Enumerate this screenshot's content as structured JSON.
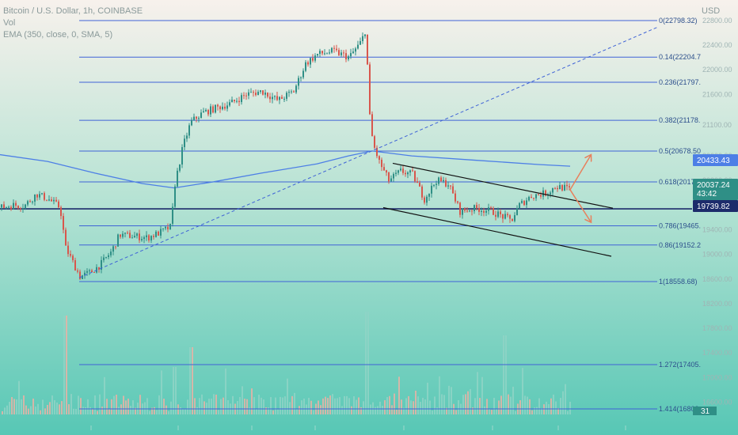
{
  "header": {
    "title": "Bitcoin / U.S. Dollar, 1h, COINBASE",
    "vol_label": "Vol",
    "ema_label": "EMA (350, close, 0, SMA, 5)"
  },
  "axis": {
    "currency": "USD"
  },
  "price_tags": {
    "ema": "20433.43",
    "last": "20037.24",
    "countdown": "43:42",
    "line": "19739.82",
    "volume_badge": "31"
  },
  "colors": {
    "bg_top": "#f7f1ec",
    "bg_bottom": "#57c7b5",
    "fib": "#3f63d6",
    "ema": "#4d7fe6",
    "bull": "#2f8f86",
    "bear": "#d8564c",
    "channel": "#111111",
    "arrow": "#e8805c",
    "horizontal_line": "#1d2b6b"
  },
  "chart_data": {
    "type": "candlestick",
    "title": "Bitcoin / U.S. Dollar, 1h, COINBASE",
    "ylabel": "USD",
    "ylim": [
      16500,
      22850
    ],
    "y_ticks": [
      22800,
      22400,
      22000,
      21600,
      21100,
      20600,
      20200,
      19800,
      19400,
      19000,
      18600,
      18200,
      17800,
      17400,
      17000,
      16600
    ],
    "fib_levels": [
      {
        "ratio": "0",
        "label": "0(22798.32)",
        "price": 22798.32
      },
      {
        "ratio": "0.14",
        "label": "0.14(22204.7",
        "price": 22204.7
      },
      {
        "ratio": "0.236",
        "label": "0.236(21797.",
        "price": 21797
      },
      {
        "ratio": "0.382",
        "label": "0.382(21178.",
        "price": 21178
      },
      {
        "ratio": "0.5",
        "label": "0.5(20678.50",
        "price": 20678.5
      },
      {
        "ratio": "0.618",
        "label": "0.618(20178.",
        "price": 20178
      },
      {
        "ratio": "0.786",
        "label": "0.786(19465.",
        "price": 19465
      },
      {
        "ratio": "0.86",
        "label": "0.86(19152.2",
        "price": 19152.2
      },
      {
        "ratio": "1",
        "label": "1(18558.68)",
        "price": 18558.68
      },
      {
        "ratio": "1.272",
        "label": "1.272(17405.",
        "price": 17405
      },
      {
        "ratio": "1.414",
        "label": "1.414(16802.",
        "price": 16802
      }
    ],
    "horizontal_line": 19739.82,
    "ema_350": [
      [
        0,
        20620
      ],
      [
        60,
        20510
      ],
      [
        120,
        20320
      ],
      [
        180,
        20150
      ],
      [
        220,
        20080
      ],
      [
        270,
        20180
      ],
      [
        330,
        20320
      ],
      [
        400,
        20470
      ],
      [
        440,
        20600
      ],
      [
        470,
        20680
      ],
      [
        520,
        20600
      ],
      [
        600,
        20530
      ],
      [
        680,
        20460
      ],
      [
        720,
        20433
      ]
    ],
    "price_path": [
      [
        0,
        19760
      ],
      [
        15,
        19800
      ],
      [
        30,
        19790
      ],
      [
        45,
        19980
      ],
      [
        60,
        19900
      ],
      [
        75,
        19760
      ],
      [
        82,
        19100
      ],
      [
        90,
        18900
      ],
      [
        100,
        18640
      ],
      [
        112,
        18700
      ],
      [
        125,
        18820
      ],
      [
        140,
        19050
      ],
      [
        150,
        19320
      ],
      [
        165,
        19300
      ],
      [
        185,
        19270
      ],
      [
        200,
        19350
      ],
      [
        215,
        19450
      ],
      [
        220,
        20150
      ],
      [
        230,
        20750
      ],
      [
        240,
        21150
      ],
      [
        255,
        21300
      ],
      [
        270,
        21370
      ],
      [
        290,
        21450
      ],
      [
        310,
        21600
      ],
      [
        330,
        21650
      ],
      [
        350,
        21500
      ],
      [
        370,
        21650
      ],
      [
        385,
        22100
      ],
      [
        400,
        22250
      ],
      [
        420,
        22300
      ],
      [
        440,
        22200
      ],
      [
        455,
        22450
      ],
      [
        462,
        22700
      ],
      [
        464,
        21450
      ],
      [
        470,
        20800
      ],
      [
        478,
        20500
      ],
      [
        490,
        20200
      ],
      [
        505,
        20350
      ],
      [
        520,
        20300
      ],
      [
        535,
        19900
      ],
      [
        550,
        20200
      ],
      [
        565,
        20150
      ],
      [
        580,
        19700
      ],
      [
        600,
        19750
      ],
      [
        620,
        19700
      ],
      [
        645,
        19550
      ],
      [
        655,
        19800
      ],
      [
        670,
        19950
      ],
      [
        690,
        20000
      ],
      [
        700,
        20100
      ],
      [
        712,
        20080
      ],
      [
        720,
        20037
      ]
    ],
    "annotations": {
      "dashed_trendline": [
        [
          100,
          18620
        ],
        [
          832,
          22700
        ]
      ],
      "channel_upper": [
        [
          496,
          20480
        ],
        [
          774,
          19750
        ]
      ],
      "channel_lower": [
        [
          484,
          19760
        ],
        [
          772,
          18970
        ]
      ],
      "arrow_up": [
        [
          720,
          20050
        ],
        [
          746,
          20610
        ]
      ],
      "arrow_down": [
        [
          720,
          20050
        ],
        [
          746,
          19530
        ]
      ]
    },
    "volume_panel": {
      "ylabel": "Vol"
    }
  }
}
